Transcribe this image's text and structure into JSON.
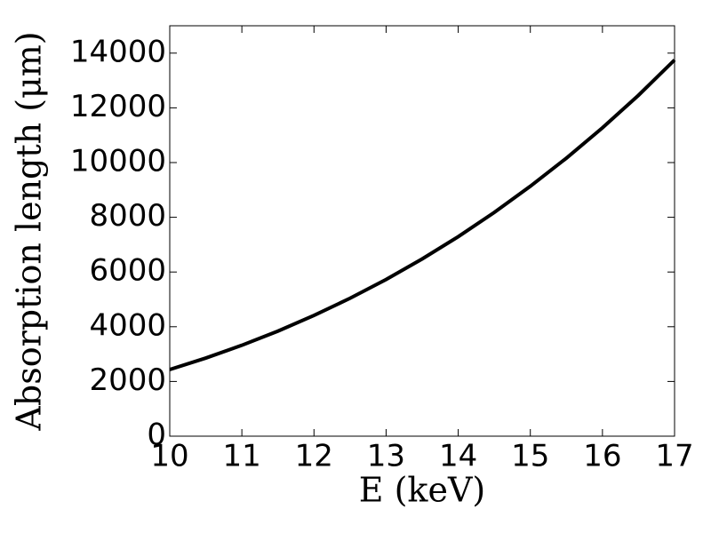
{
  "chart_data": {
    "type": "line",
    "xlabel": "E (keV)",
    "ylabel": "Absorption length (μm)",
    "x": [
      10,
      10.5,
      11,
      11.5,
      12,
      12.5,
      13,
      13.5,
      14,
      14.5,
      15,
      15.5,
      16,
      16.5,
      17
    ],
    "series": [
      {
        "color": "#000000",
        "values": [
          2435,
          2855,
          3322,
          3840,
          4412,
          5040,
          5727,
          6477,
          7292,
          8177,
          9134,
          10162,
          11271,
          12460,
          13750
        ]
      }
    ],
    "xlim": [
      10,
      17
    ],
    "ylim": [
      0,
      15000
    ],
    "xticks": [
      10,
      11,
      12,
      13,
      14,
      15,
      16,
      17
    ],
    "yticks": [
      0,
      2000,
      4000,
      6000,
      8000,
      10000,
      12000,
      14000
    ],
    "grid": false
  }
}
